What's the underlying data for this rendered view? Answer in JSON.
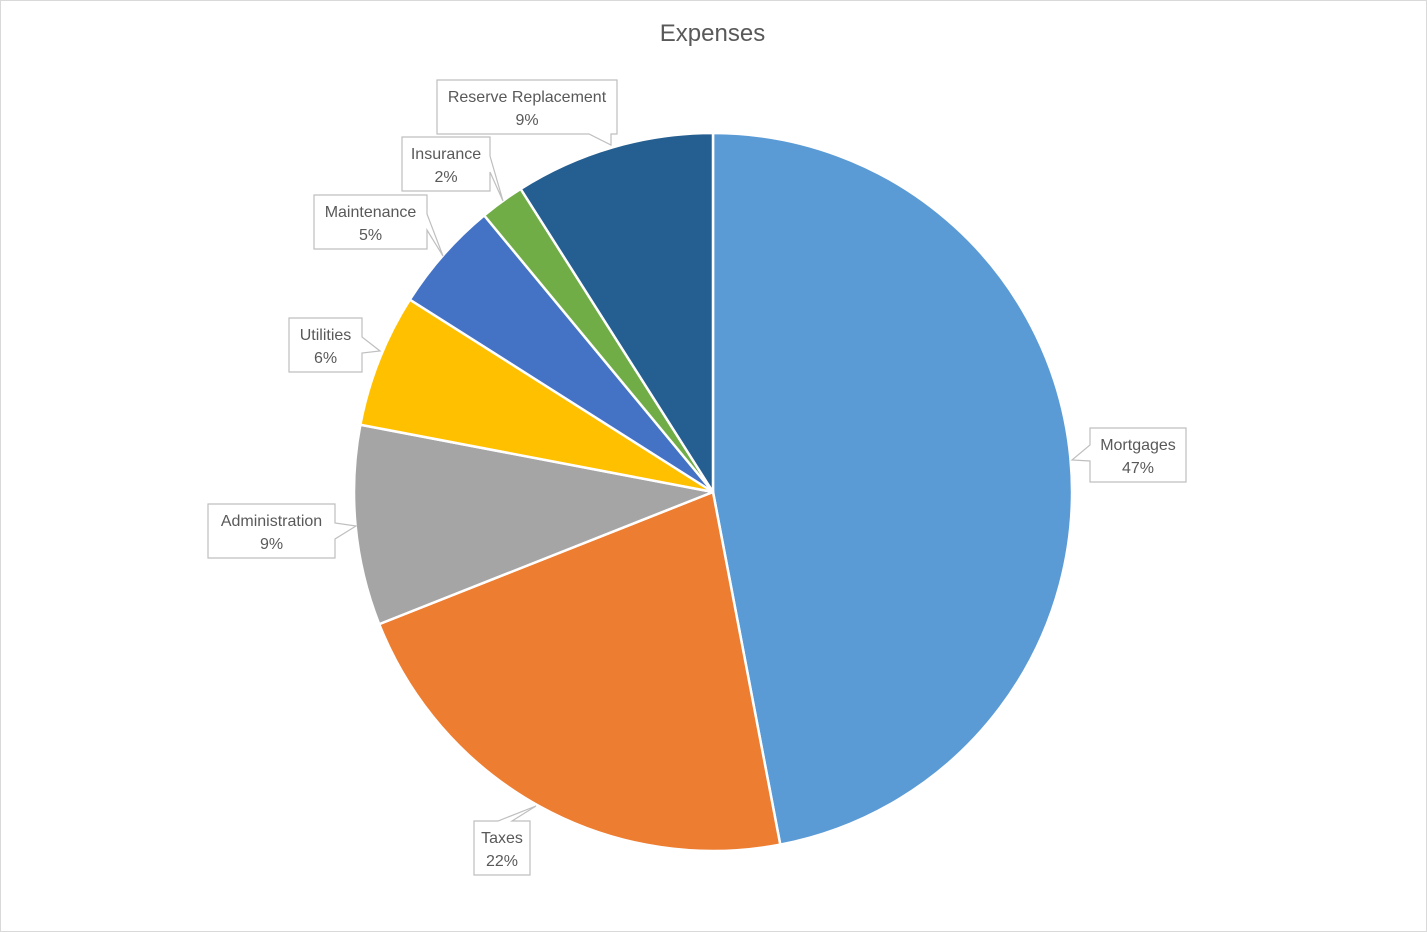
{
  "chart_data": {
    "type": "pie",
    "title": "Expenses",
    "slices": [
      {
        "label": "Mortgages",
        "value": 47,
        "value_label": "47%",
        "color": "#5B9BD5"
      },
      {
        "label": "Taxes",
        "value": 22,
        "value_label": "22%",
        "color": "#ED7D31"
      },
      {
        "label": "Administration",
        "value": 9,
        "value_label": "9%",
        "color": "#A5A5A5"
      },
      {
        "label": "Utilities",
        "value": 6,
        "value_label": "6%",
        "color": "#FFC000"
      },
      {
        "label": "Maintenance",
        "value": 5,
        "value_label": "5%",
        "color": "#4472C4"
      },
      {
        "label": "Insurance",
        "value": 2,
        "value_label": "2%",
        "color": "#70AD47"
      },
      {
        "label": "Reserve Replacement",
        "value": 9,
        "value_label": "9%",
        "color": "#255E91"
      }
    ],
    "start_angle": "12 o'clock",
    "direction": "clockwise",
    "data_labels": "callouts with category name and percentage",
    "legend": "none"
  }
}
